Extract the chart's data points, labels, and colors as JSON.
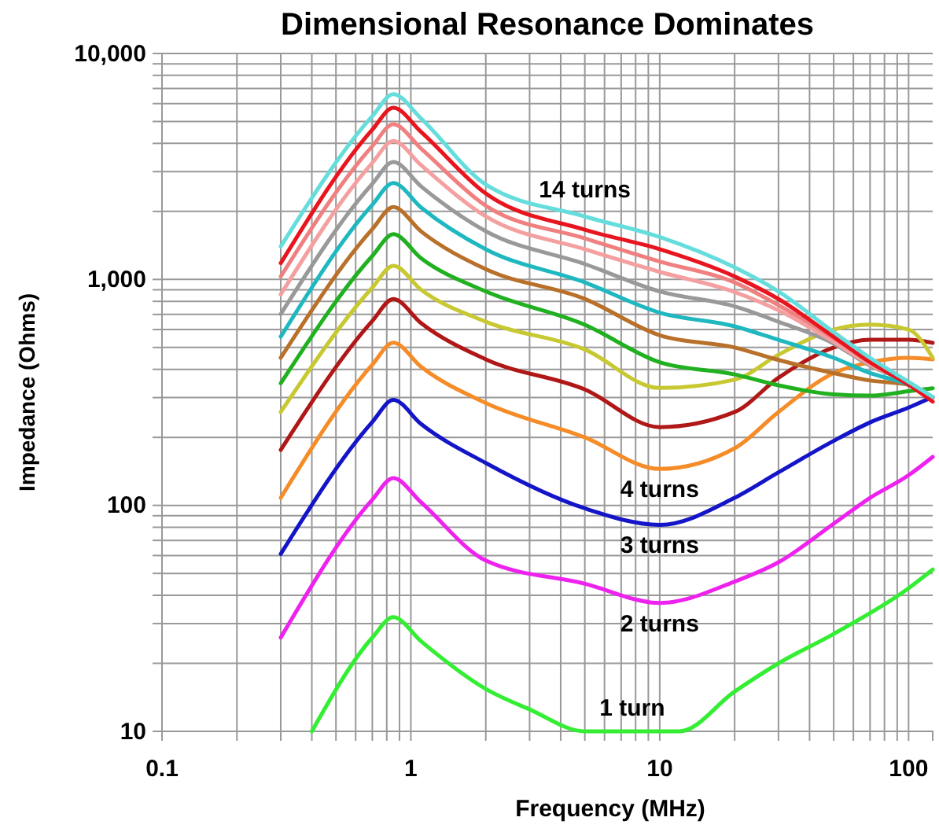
{
  "chart_data": {
    "type": "line",
    "title": "Dimensional Resonance Dominates",
    "xlabel": "Frequency  (MHz)",
    "ylabel": "Impedance (Ohms)",
    "log": "xy",
    "grid": true,
    "marker": "none",
    "line_style": "solid",
    "xlim": [
      0.1,
      125
    ],
    "ylim": [
      10,
      10000
    ],
    "xticks": [
      0.1,
      {
        "value": 0.2,
        "label": null
      },
      {
        "value": 0.3,
        "label": null
      },
      {
        "value": 0.4,
        "label": null
      },
      {
        "value": 0.5,
        "label": null
      },
      {
        "value": 0.6,
        "label": null
      },
      {
        "value": 0.7,
        "label": null
      },
      {
        "value": 0.8,
        "label": null
      },
      {
        "value": 0.9,
        "label": null
      },
      1,
      {
        "value": 2,
        "label": null
      },
      {
        "value": 3,
        "label": null
      },
      {
        "value": 4,
        "label": null
      },
      {
        "value": 5,
        "label": null
      },
      {
        "value": 6,
        "label": null
      },
      {
        "value": 7,
        "label": null
      },
      {
        "value": 8,
        "label": null
      },
      {
        "value": 9,
        "label": null
      },
      10,
      {
        "value": 20,
        "label": null
      },
      {
        "value": 30,
        "label": null
      },
      {
        "value": 40,
        "label": null
      },
      {
        "value": 50,
        "label": null
      },
      {
        "value": 60,
        "label": null
      },
      {
        "value": 70,
        "label": null
      },
      {
        "value": 80,
        "label": null
      },
      {
        "value": 90,
        "label": null
      },
      100
    ],
    "yticks": [
      10,
      {
        "value": 20,
        "label": null
      },
      {
        "value": 30,
        "label": null
      },
      {
        "value": 40,
        "label": null
      },
      {
        "value": 50,
        "label": null
      },
      {
        "value": 60,
        "label": null
      },
      {
        "value": 70,
        "label": null
      },
      {
        "value": 80,
        "label": null
      },
      {
        "value": 90,
        "label": null
      },
      100,
      {
        "value": 200,
        "label": null
      },
      {
        "value": 300,
        "label": null
      },
      {
        "value": 400,
        "label": null
      },
      {
        "value": 500,
        "label": null
      },
      {
        "value": 600,
        "label": null
      },
      {
        "value": 700,
        "label": null
      },
      {
        "value": 800,
        "label": null
      },
      {
        "value": 900,
        "label": null
      },
      {
        "value": 1000,
        "label": "1,000"
      },
      {
        "value": 2000,
        "label": null
      },
      {
        "value": 3000,
        "label": null
      },
      {
        "value": 4000,
        "label": null
      },
      {
        "value": 5000,
        "label": null
      },
      {
        "value": 6000,
        "label": null
      },
      {
        "value": 7000,
        "label": null
      },
      {
        "value": 8000,
        "label": null
      },
      {
        "value": 9000,
        "label": null
      },
      {
        "value": 10000,
        "label": "10,000"
      }
    ],
    "x": [
      0.3,
      0.7,
      0.85,
      1.1,
      2,
      5,
      10,
      20,
      30,
      50,
      70,
      100,
      125
    ],
    "series": [
      {
        "name": "1 turn",
        "color": "#33ee33",
        "x": [
          0.4,
          0.7,
          0.85,
          1.1,
          2,
          3,
          5,
          12,
          20,
          30,
          50,
          100,
          125
        ],
        "values": [
          10,
          26,
          32,
          25,
          15.4,
          12.5,
          10,
          10,
          15,
          20,
          27,
          43,
          52
        ]
      },
      {
        "name": "2 turns",
        "color": "#ee22ee",
        "values": [
          26,
          106,
          132,
          103,
          57,
          45,
          37,
          46,
          56,
          83,
          108,
          136,
          164
        ]
      },
      {
        "name": "3 turns",
        "color": "#1414c8",
        "values": [
          61,
          234,
          293,
          229,
          154,
          97,
          82,
          108,
          140,
          193,
          233,
          271,
          302
        ]
      },
      {
        "name": "4 turns",
        "color": "#f58c28",
        "values": [
          108,
          420,
          525,
          410,
          284,
          200,
          145,
          179,
          259,
          385,
          430,
          450,
          443
        ]
      },
      {
        "color": "#b01818",
        "values": [
          176,
          655,
          819,
          640,
          443,
          326,
          222,
          259,
          367,
          500,
          541,
          541,
          524
        ]
      },
      {
        "color": "#c8c832",
        "values": [
          259,
          920,
          1150,
          900,
          650,
          490,
          331,
          360,
          464,
          600,
          631,
          600,
          450
        ]
      },
      {
        "color": "#20b020",
        "values": [
          347,
          1270,
          1585,
          1240,
          885,
          630,
          430,
          380,
          340,
          310,
          306,
          320,
          330
        ]
      },
      {
        "color": "#b8702a",
        "values": [
          450,
          1670,
          2090,
          1630,
          1110,
          820,
          566,
          500,
          440,
          385,
          357,
          342,
          300
        ]
      },
      {
        "color": "#20b8c0",
        "values": [
          558,
          2140,
          2670,
          2080,
          1360,
          970,
          713,
          620,
          540,
          450,
          385,
          342,
          300
        ]
      },
      {
        "color": "#999999",
        "values": [
          703,
          2650,
          3310,
          2580,
          1635,
          1170,
          885,
          760,
          650,
          520,
          415,
          350,
          300
        ]
      },
      {
        "color": "#f4a0a0",
        "values": [
          858,
          3280,
          4100,
          3200,
          1900,
          1360,
          1080,
          880,
          730,
          530,
          420,
          350,
          300
        ]
      },
      {
        "color": "#f08080",
        "values": [
          1030,
          3890,
          4860,
          3790,
          2120,
          1520,
          1200,
          970,
          770,
          550,
          430,
          350,
          300
        ]
      },
      {
        "color": "#e8141e",
        "values": [
          1180,
          4600,
          5750,
          4490,
          2400,
          1660,
          1360,
          1030,
          819,
          557,
          430,
          342,
          288
        ]
      },
      {
        "name": "14 turns",
        "color": "#66dddd",
        "values": [
          1400,
          5280,
          6600,
          5150,
          2630,
          1900,
          1540,
          1130,
          885,
          585,
          450,
          352,
          302
        ]
      }
    ]
  }
}
